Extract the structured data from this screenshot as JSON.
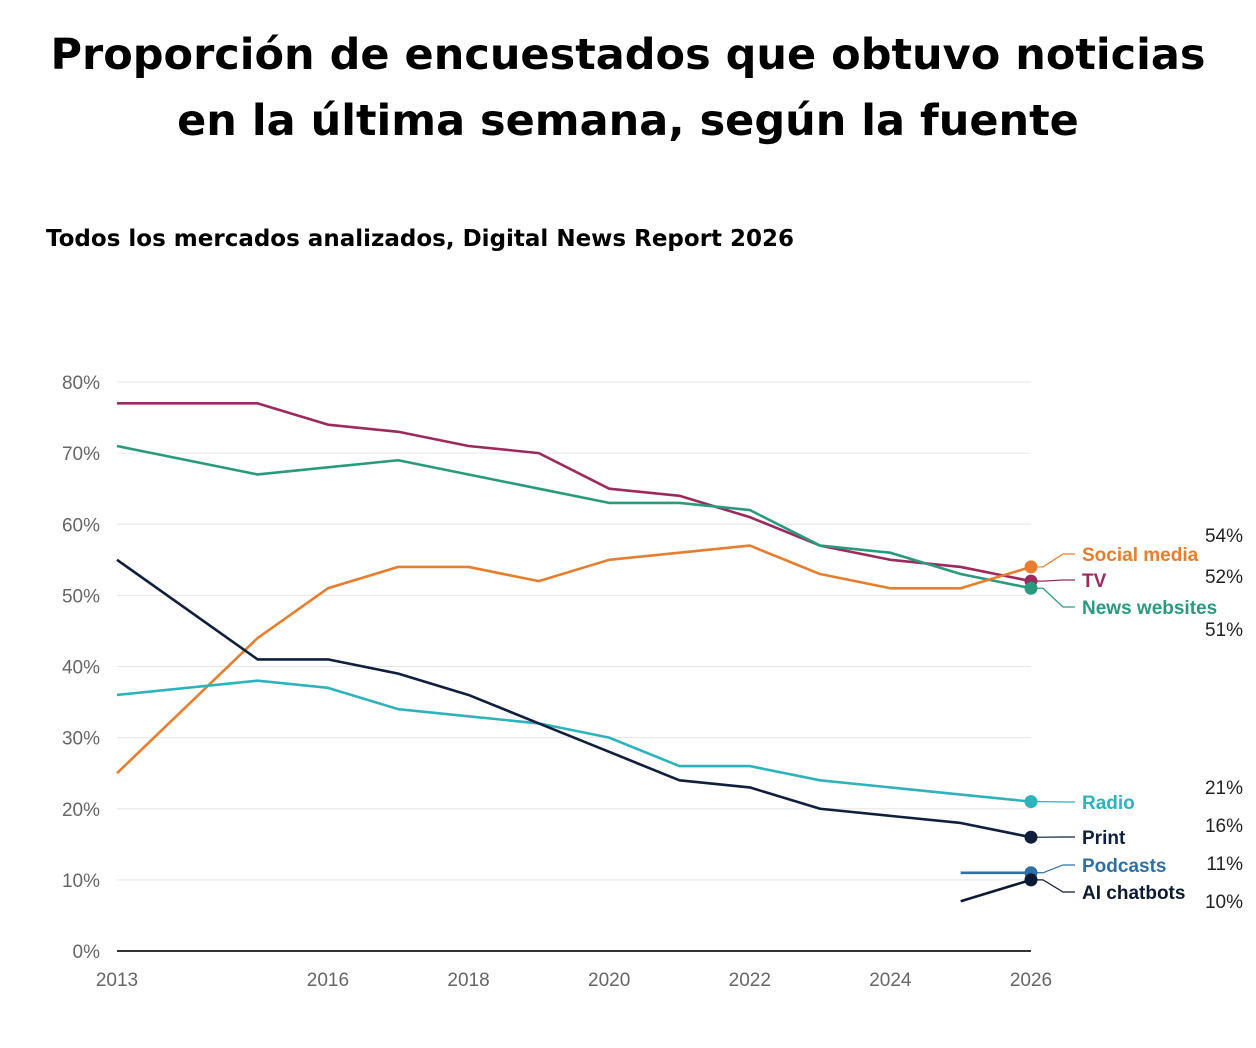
{
  "title_lines": [
    "Proporción de encuestados que obtuvo noticias",
    "en la última semana, según la fuente"
  ],
  "subtitle": "Todos los mercados analizados, Digital News Report 2026",
  "chart_data": {
    "type": "line",
    "x_ticks": [
      2013,
      2016,
      2018,
      2020,
      2022,
      2024,
      2026
    ],
    "y_ticks": [
      "0%",
      "10%",
      "20%",
      "30%",
      "40%",
      "50%",
      "60%",
      "70%",
      "80%"
    ],
    "xlim": [
      2013,
      2026
    ],
    "ylim": [
      0,
      80
    ],
    "grid": true,
    "series": [
      {
        "name": "TV",
        "color": "#9c2a5e",
        "value_label": "52%",
        "x": [
          2013,
          2015,
          2016,
          2017,
          2018,
          2019,
          2020,
          2021,
          2022,
          2023,
          2024,
          2025,
          2026
        ],
        "y": [
          77,
          77,
          74,
          73,
          71,
          70,
          65,
          64,
          61,
          57,
          55,
          54,
          52
        ]
      },
      {
        "name": "News websites",
        "color": "#2a9a7e",
        "value_label": "51%",
        "x": [
          2013,
          2015,
          2016,
          2017,
          2018,
          2019,
          2020,
          2021,
          2022,
          2023,
          2024,
          2025,
          2026
        ],
        "y": [
          71,
          67,
          68,
          69,
          67,
          65,
          63,
          63,
          62,
          57,
          56,
          53,
          51
        ]
      },
      {
        "name": "Social media",
        "color": "#e67e2e",
        "value_label": "54%",
        "x": [
          2013,
          2015,
          2016,
          2017,
          2018,
          2019,
          2020,
          2021,
          2022,
          2023,
          2024,
          2025,
          2026
        ],
        "y": [
          25,
          44,
          51,
          54,
          54,
          52,
          55,
          56,
          57,
          53,
          51,
          51,
          54
        ]
      },
      {
        "name": "Radio",
        "color": "#2eb3bd",
        "value_label": "21%",
        "x": [
          2013,
          2015,
          2016,
          2017,
          2018,
          2019,
          2020,
          2021,
          2022,
          2023,
          2024,
          2025,
          2026
        ],
        "y": [
          36,
          38,
          37,
          34,
          33,
          32,
          30,
          26,
          26,
          24,
          23,
          22,
          21
        ]
      },
      {
        "name": "Print",
        "color": "#0f1f3d",
        "value_label": "16%",
        "x": [
          2013,
          2015,
          2016,
          2017,
          2018,
          2019,
          2020,
          2021,
          2022,
          2023,
          2024,
          2025,
          2026
        ],
        "y": [
          55,
          41,
          41,
          39,
          36,
          32,
          28,
          24,
          23,
          20,
          19,
          18,
          16
        ]
      },
      {
        "name": "Podcasts",
        "color": "#2f6fa7",
        "value_label": "11%",
        "x": [
          2025,
          2026
        ],
        "y": [
          11,
          11
        ]
      },
      {
        "name": "AI chatbots",
        "color": "#0c1a33",
        "value_label": "10%",
        "x": [
          2025,
          2026
        ],
        "y": [
          7,
          10
        ]
      }
    ]
  }
}
